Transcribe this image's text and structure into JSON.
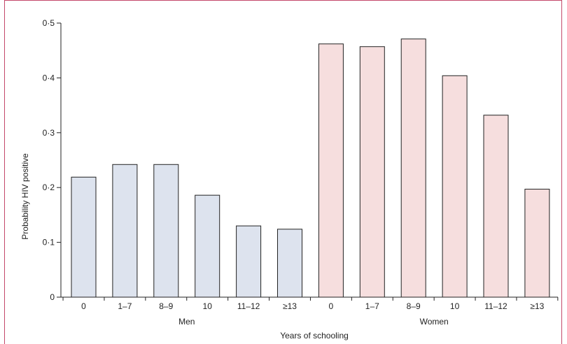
{
  "chart_data": {
    "type": "bar",
    "xlabel": "Years of schooling",
    "ylabel": "Probability HIV positive",
    "ylim": [
      0,
      0.5
    ],
    "yticks": [
      "0",
      "0·1",
      "0·2",
      "0·3",
      "0·4",
      "0·5"
    ],
    "yticks_values": [
      0,
      0.1,
      0.2,
      0.3,
      0.4,
      0.5
    ],
    "grid": false,
    "groups": [
      {
        "name": "Men",
        "color": "#dde3ee",
        "categories": [
          "0",
          "1–7",
          "8–9",
          "10",
          "11–12",
          "≥13"
        ],
        "values": [
          0.219,
          0.242,
          0.242,
          0.186,
          0.13,
          0.124
        ]
      },
      {
        "name": "Women",
        "color": "#f6dede",
        "categories": [
          "0",
          "1–7",
          "8–9",
          "10",
          "11–12",
          "≥13"
        ],
        "values": [
          0.462,
          0.457,
          0.471,
          0.404,
          0.332,
          0.197
        ]
      }
    ]
  }
}
